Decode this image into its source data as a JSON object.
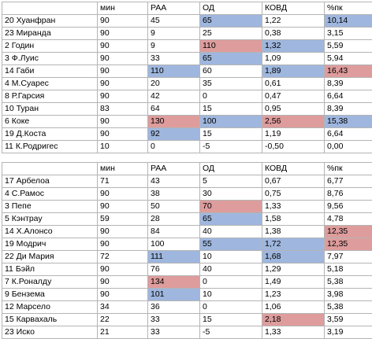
{
  "colors": {
    "blue": "#9fb7de",
    "red": "#de9c9c"
  },
  "tables": [
    {
      "headers": [
        "",
        "мин",
        "РАА",
        "ОД",
        "КОВД",
        "%пк"
      ],
      "rows": [
        [
          "20 Хуанфран",
          "90",
          "45",
          "65",
          "1,22",
          "10,14"
        ],
        [
          "23 Миранда",
          "90",
          "9",
          "25",
          "0,38",
          "3,15"
        ],
        [
          "2 Годин",
          "90",
          "9",
          "110",
          "1,32",
          "5,59"
        ],
        [
          "3 Ф.Луис",
          "90",
          "33",
          "65",
          "1,09",
          "5,94"
        ],
        [
          "14 Габи",
          "90",
          "110",
          "60",
          "1,89",
          "16,43"
        ],
        [
          "4 М.Суарес",
          "90",
          "20",
          "35",
          "0,61",
          "8,39"
        ],
        [
          "8 Р.Гарсия",
          "90",
          "42",
          "0",
          "0,47",
          "6,64"
        ],
        [
          "10 Туран",
          "83",
          "64",
          "15",
          "0,95",
          "8,39"
        ],
        [
          "6 Коке",
          "90",
          "130",
          "100",
          "2,56",
          "15,38"
        ],
        [
          "19 Д.Коста",
          "90",
          "92",
          "15",
          "1,19",
          "6,64"
        ],
        [
          "11 К.Родригес",
          "10",
          "0",
          "-5",
          "-0,50",
          "0,00"
        ]
      ],
      "highlights": [
        [
          0,
          3,
          "blue"
        ],
        [
          0,
          5,
          "blue"
        ],
        [
          2,
          3,
          "red"
        ],
        [
          2,
          4,
          "blue"
        ],
        [
          3,
          3,
          "blue"
        ],
        [
          4,
          2,
          "blue"
        ],
        [
          4,
          4,
          "blue"
        ],
        [
          4,
          5,
          "red"
        ],
        [
          8,
          2,
          "red"
        ],
        [
          8,
          3,
          "blue"
        ],
        [
          8,
          4,
          "red"
        ],
        [
          8,
          5,
          "blue"
        ],
        [
          9,
          2,
          "blue"
        ]
      ]
    },
    {
      "headers": [
        "",
        "мин",
        "РАА",
        "ОД",
        "КОВД",
        "%пк"
      ],
      "rows": [
        [
          "17 Арбелоа",
          "71",
          "43",
          "5",
          "0,67",
          "6,77"
        ],
        [
          "4 С.Рамос",
          "90",
          "38",
          "30",
          "0,75",
          "8,76"
        ],
        [
          "3 Пепе",
          "90",
          "50",
          "70",
          "1,33",
          "9,56"
        ],
        [
          "5 Кэнтрау",
          "59",
          "28",
          "65",
          "1,58",
          "4,78"
        ],
        [
          "14 Х.Алонсо",
          "90",
          "84",
          "40",
          "1,38",
          "12,35"
        ],
        [
          "19 Модрич",
          "90",
          "100",
          "55",
          "1,72",
          "12,35"
        ],
        [
          "22 Ди Мария",
          "72",
          "111",
          "10",
          "1,68",
          "7,97"
        ],
        [
          "11 Бэйл",
          "90",
          "76",
          "40",
          "1,29",
          "5,18"
        ],
        [
          "7 К.Роналду",
          "90",
          "134",
          "0",
          "1,49",
          "5,38"
        ],
        [
          "9 Бензема",
          "90",
          "101",
          "10",
          "1,23",
          "3,98"
        ],
        [
          "12 Марсело",
          "34",
          "36",
          "0",
          "1,06",
          "5,38"
        ],
        [
          "15 Карвахаль",
          "22",
          "33",
          "15",
          "2,18",
          "3,59"
        ],
        [
          "23 Иско",
          "21",
          "33",
          "-5",
          "1,33",
          "3,19"
        ]
      ],
      "highlights": [
        [
          2,
          3,
          "red"
        ],
        [
          3,
          3,
          "blue"
        ],
        [
          4,
          5,
          "red"
        ],
        [
          5,
          3,
          "blue"
        ],
        [
          5,
          4,
          "blue"
        ],
        [
          5,
          5,
          "red"
        ],
        [
          6,
          2,
          "blue"
        ],
        [
          6,
          4,
          "blue"
        ],
        [
          8,
          2,
          "red"
        ],
        [
          9,
          2,
          "blue"
        ],
        [
          11,
          4,
          "red"
        ]
      ]
    }
  ]
}
